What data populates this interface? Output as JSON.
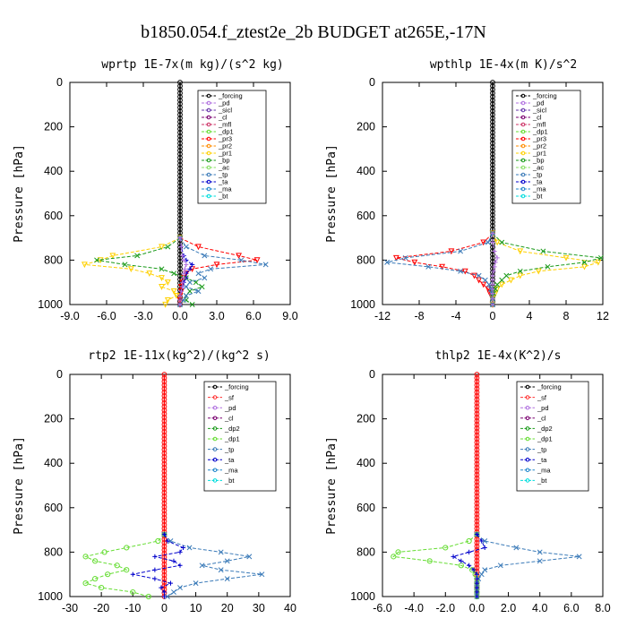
{
  "page": {
    "title": "b1850.054.f_ztest2e_2b  BUDGET at265E,-17N"
  },
  "chart_data": [
    {
      "type": "line",
      "title": "wprtp  1E-7x(m kg)/(s^2 kg)",
      "ylabel": "Pressure [hPa]",
      "xlim": [
        -9,
        9
      ],
      "ylim": [
        1000,
        0
      ],
      "xticks": [
        "-9.0",
        "-6.0",
        "-3.0",
        "0.0",
        "3.0",
        "6.0",
        "9.0"
      ],
      "yticks": [
        "0",
        "200",
        "400",
        "600",
        "800",
        "1000"
      ],
      "y_levels": [
        700,
        740,
        780,
        800,
        820,
        840,
        860,
        880,
        900,
        920,
        940,
        960,
        980,
        1000
      ],
      "legend": [
        "_forcing",
        "_pd",
        "_sicl",
        "_cl",
        "_mfl",
        "_dp1",
        "_pr3",
        "_pr2",
        "_pr1",
        "_bp",
        "_ac",
        "_tp",
        "_ta",
        "_ma",
        "_bt"
      ],
      "series": [
        {
          "name": "_forcing",
          "color": "#000000",
          "marker": "circle",
          "x": [
            0,
            0,
            0,
            0,
            0,
            0,
            0,
            0,
            0,
            0,
            0,
            0,
            0,
            0
          ]
        },
        {
          "name": "_pr3",
          "color": "#ff0000",
          "marker": "tri-down",
          "x": [
            0,
            1.5,
            4.8,
            6.3,
            3.0,
            1.0,
            0.5,
            0.3,
            0.2,
            0.1,
            0.1,
            0,
            0,
            0
          ]
        },
        {
          "name": "_pr1",
          "color": "#ffd000",
          "marker": "tri-down",
          "x": [
            0,
            -1.5,
            -5.5,
            -6.5,
            -7.8,
            -4.0,
            -2.5,
            -1.5,
            -1.0,
            -1.5,
            -0.5,
            -0.3,
            -1.0,
            -1.2
          ]
        },
        {
          "name": "_bp",
          "color": "#1a9a1a",
          "marker": "x",
          "x": [
            0,
            -1.0,
            -3.5,
            -6.8,
            -4.5,
            -1.5,
            -0.5,
            0.5,
            1.3,
            1.8,
            0.8,
            0.5,
            0.5,
            1.0
          ]
        },
        {
          "name": "_tp",
          "color": "#3a7ab8",
          "marker": "x",
          "x": [
            0,
            0.5,
            2.0,
            5.0,
            7.0,
            2.5,
            1.5,
            2.0,
            0.8,
            0.5,
            1.5,
            0.5,
            0.3,
            0
          ]
        },
        {
          "name": "_ta",
          "color": "#0000cc",
          "marker": "plus",
          "x": [
            0,
            0.1,
            0.3,
            0.5,
            1.0,
            0.8,
            0.5,
            0.5,
            0.3,
            0.2,
            0.1,
            0,
            0,
            0
          ]
        },
        {
          "name": "_pd",
          "color": "#b070e0",
          "marker": "plus",
          "x": [
            0,
            0.1,
            0.2,
            0.3,
            0.5,
            0.4,
            0.3,
            0.3,
            0.2,
            0.2,
            0.1,
            0,
            0,
            0
          ]
        }
      ]
    },
    {
      "type": "line",
      "title": "wpthlp  1E-4x(m K)/s^2",
      "ylabel": "Pressure [hPa]",
      "xlim": [
        -12,
        12
      ],
      "ylim": [
        1000,
        0
      ],
      "xticks": [
        "-12",
        "-8",
        "-4",
        "0",
        "4",
        "8",
        "12"
      ],
      "yticks": [
        "0",
        "200",
        "400",
        "600",
        "800",
        "1000"
      ],
      "y_levels": [
        680,
        720,
        760,
        790,
        810,
        830,
        850,
        870,
        890,
        910,
        930,
        950,
        975,
        1000
      ],
      "legend": [
        "_forcing",
        "_pd",
        "_sicl",
        "_cl",
        "_mfl",
        "_dp1",
        "_pr3",
        "_pr2",
        "_pr1",
        "_bp",
        "_ac",
        "_tp",
        "_ta",
        "_ma",
        "_bt"
      ],
      "series": [
        {
          "name": "_forcing",
          "color": "#000000",
          "marker": "circle",
          "x": [
            0,
            0,
            0,
            0,
            0,
            0,
            0,
            0,
            0,
            0,
            0,
            0,
            0,
            0
          ]
        },
        {
          "name": "_pr3",
          "color": "#ff0000",
          "marker": "tri-down",
          "x": [
            0,
            -1.0,
            -4.5,
            -10.5,
            -8.5,
            -5.5,
            -3.0,
            -2.0,
            -1.5,
            -1.0,
            -0.5,
            -0.3,
            0,
            0
          ]
        },
        {
          "name": "_pr1",
          "color": "#ffd000",
          "marker": "tri-down",
          "x": [
            0,
            0.5,
            3.0,
            8.0,
            11.5,
            10.0,
            5.0,
            3.0,
            2.0,
            1.0,
            0.5,
            0.3,
            0,
            0
          ]
        },
        {
          "name": "_bp",
          "color": "#1a9a1a",
          "marker": "x",
          "x": [
            0,
            1.0,
            5.5,
            11.8,
            10.0,
            6.0,
            3.0,
            1.5,
            1.0,
            0.5,
            0.3,
            0.1,
            0,
            0
          ]
        },
        {
          "name": "_tp",
          "color": "#3a7ab8",
          "marker": "x",
          "x": [
            0,
            -0.5,
            -3.5,
            -9.5,
            -11.5,
            -7.0,
            -3.5,
            -1.5,
            -0.8,
            -0.4,
            -0.2,
            -0.1,
            0,
            0
          ]
        },
        {
          "name": "_pd",
          "color": "#b070e0",
          "marker": "plus",
          "x": [
            0,
            0,
            0.2,
            0.5,
            0.3,
            0.2,
            0.1,
            0,
            0,
            0,
            0,
            0,
            0,
            0
          ]
        }
      ]
    },
    {
      "type": "line",
      "title": "rtp2  1E-11x(kg^2)/(kg^2 s)",
      "ylabel": "Pressure [hPa]",
      "xlim": [
        -30,
        40
      ],
      "ylim": [
        1000,
        0
      ],
      "xticks": [
        "-30",
        "-20",
        "-10",
        "0",
        "10",
        "20",
        "30",
        "40"
      ],
      "yticks": [
        "0",
        "200",
        "400",
        "600",
        "800",
        "1000"
      ],
      "y_levels": [
        720,
        750,
        780,
        800,
        820,
        840,
        860,
        880,
        900,
        920,
        940,
        960,
        980,
        1000
      ],
      "legend": [
        "_forcing",
        "_sf",
        "_pd",
        "_cl",
        "_dp2",
        "_dp1",
        "_tp",
        "_ta",
        "_ma",
        "_bt"
      ],
      "series": [
        {
          "name": "_forcing",
          "color": "#ff0000",
          "marker": "circle",
          "x": [
            0,
            0,
            0,
            0,
            0,
            0,
            0,
            0,
            0,
            0,
            0,
            0,
            0,
            0
          ]
        },
        {
          "name": "_dp1",
          "color": "#66dd33",
          "marker": "circle",
          "x": [
            0,
            -2,
            -12,
            -19,
            -25,
            -22,
            -15,
            -12,
            -18,
            -22,
            -25,
            -20,
            -10,
            -5
          ]
        },
        {
          "name": "_tp",
          "color": "#3a7ab8",
          "marker": "x",
          "x": [
            0,
            2,
            8,
            18,
            27,
            20,
            12,
            18,
            31,
            20,
            10,
            5,
            3,
            1
          ]
        },
        {
          "name": "_ta",
          "color": "#0000cc",
          "marker": "plus",
          "x": [
            0,
            1,
            6,
            5,
            -3,
            3,
            5,
            -3,
            -10,
            -3,
            2,
            -1,
            0,
            0
          ]
        }
      ]
    },
    {
      "type": "line",
      "title": "thlp2  1E-4x(K^2)/s",
      "ylabel": "Pressure [hPa]",
      "xlim": [
        -6,
        8
      ],
      "ylim": [
        1000,
        0
      ],
      "xticks": [
        "-6.0",
        "-4.0",
        "-2.0",
        "0.0",
        "2.0",
        "4.0",
        "6.0",
        "8.0"
      ],
      "yticks": [
        "0",
        "200",
        "400",
        "600",
        "800",
        "1000"
      ],
      "y_levels": [
        720,
        750,
        780,
        800,
        820,
        840,
        860,
        880,
        900,
        920,
        940,
        960,
        980,
        1000
      ],
      "legend": [
        "_forcing",
        "_sf",
        "_pd",
        "_cl",
        "_dp2",
        "_dp1",
        "_tp",
        "_ta",
        "_ma",
        "_bt"
      ],
      "series": [
        {
          "name": "_forcing",
          "color": "#ff0000",
          "marker": "circle",
          "x": [
            0,
            0,
            0,
            0,
            0,
            0,
            0,
            0,
            0,
            0,
            0,
            0,
            0,
            0
          ]
        },
        {
          "name": "_dp1",
          "color": "#66dd33",
          "marker": "circle",
          "x": [
            0,
            -0.5,
            -2.0,
            -5.0,
            -5.3,
            -3.0,
            -1.0,
            -0.3,
            -0.1,
            0,
            0,
            0,
            0,
            0
          ]
        },
        {
          "name": "_tp",
          "color": "#3a7ab8",
          "marker": "x",
          "x": [
            0,
            0.5,
            2.5,
            4.0,
            6.5,
            4.0,
            1.5,
            0.5,
            0.3,
            0.1,
            0,
            0,
            0,
            0
          ]
        },
        {
          "name": "_ta",
          "color": "#0000cc",
          "marker": "plus",
          "x": [
            0,
            0.3,
            0.5,
            -0.5,
            -1.5,
            -1.0,
            -0.5,
            -0.2,
            0,
            0,
            0,
            0,
            0,
            0
          ]
        }
      ]
    }
  ],
  "colors": {
    "legend_colors": {
      "_forcing": "#000000",
      "_pd": "#b070e0",
      "_sicl": "#6633aa",
      "_cl": "#7a0070",
      "_mfl": "#cc3366",
      "_dp1": "#66dd33",
      "_dp2": "#1a9a1a",
      "_pr3": "#ff0000",
      "_pr2": "#ff8c00",
      "_pr1": "#ffd000",
      "_bp": "#1a9a1a",
      "_ac": "#88e066",
      "_tp": "#3a7ab8",
      "_ta": "#0000cc",
      "_ma": "#2288cc",
      "_bt": "#00dddd",
      "_sf": "#ff3333"
    },
    "forcing_bottom": "#ff0000"
  }
}
